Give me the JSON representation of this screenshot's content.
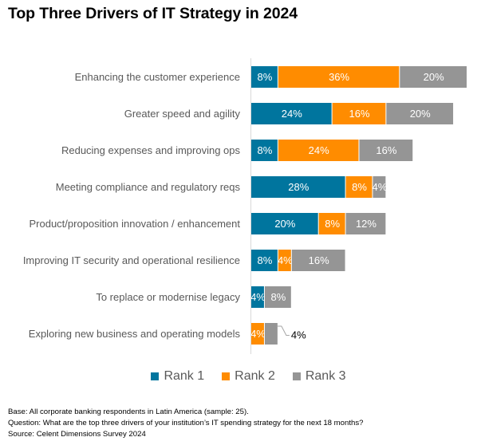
{
  "chart_data": {
    "type": "bar",
    "orientation": "horizontal",
    "stacked": true,
    "title": "Top Three Drivers of IT Strategy in 2024",
    "xlabel": "",
    "ylabel": "",
    "categories": [
      "Enhancing the customer experience",
      "Greater speed and agility",
      "Reducing expenses and improving ops",
      "Meeting compliance and regulatory reqs",
      "Product/proposition innovation / enhancement",
      "Improving IT security and operational resilience",
      "To replace or modernise legacy",
      "Exploring new business and operating models"
    ],
    "series": [
      {
        "name": "Rank 1",
        "color": "#00759E",
        "values": [
          8,
          24,
          8,
          28,
          20,
          8,
          4,
          0
        ]
      },
      {
        "name": "Rank 2",
        "color": "#FF8C00",
        "values": [
          36,
          16,
          24,
          8,
          8,
          4,
          0,
          4
        ]
      },
      {
        "name": "Rank 3",
        "color": "#959595",
        "values": [
          20,
          20,
          16,
          4,
          12,
          16,
          8,
          4
        ]
      }
    ],
    "value_suffix": "%",
    "xlim": [
      0,
      64
    ],
    "grid": false,
    "legend_position": "bottom",
    "outside_labels": [
      {
        "category_index": 7,
        "series_index": 2,
        "text": "4%"
      }
    ]
  },
  "legend": [
    {
      "label": "Rank 1",
      "color": "#00759E"
    },
    {
      "label": "Rank 2",
      "color": "#FF8C00"
    },
    {
      "label": "Rank 3",
      "color": "#959595"
    }
  ],
  "footer": {
    "base": "Base: All corporate banking respondents in Latin America (sample: 25).",
    "question": "Question: What are the top three drivers of your institution’s IT spending strategy for the next 18 months?",
    "source": "Source: Celent Dimensions Survey 2024"
  }
}
